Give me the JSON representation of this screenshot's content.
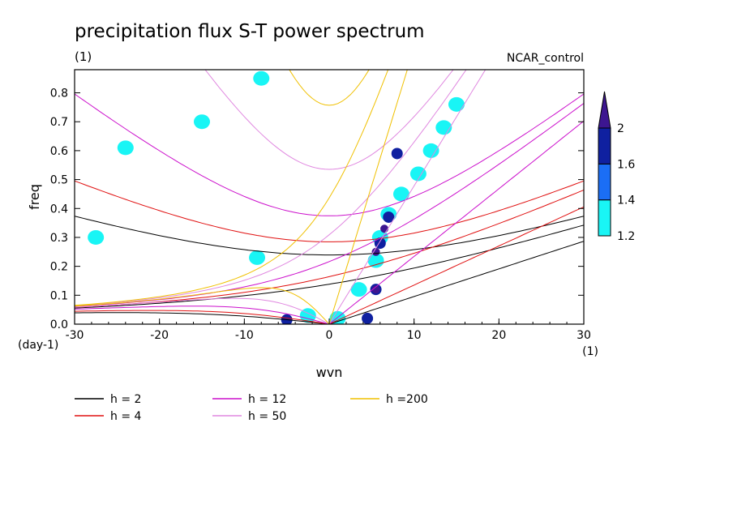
{
  "chart_data": {
    "type": "heatmap",
    "title": "precipitation flux S-T power spectrum",
    "subtitle_left": "(1)",
    "subtitle_right": "NCAR_control",
    "xlabel": "wvn",
    "ylabel": "freq",
    "x_unit": "(1)",
    "y_unit": "(day-1)",
    "xlim": [
      -30,
      30
    ],
    "ylim": [
      0,
      0.88
    ],
    "xticks": [
      -30,
      -20,
      -10,
      0,
      10,
      20,
      30
    ],
    "xtick_labels": [
      "-30",
      "-20",
      "-10",
      "0",
      "10",
      "20",
      "30"
    ],
    "yticks": [
      0,
      0.1,
      0.2,
      0.3,
      0.4,
      0.5,
      0.6,
      0.7,
      0.8
    ],
    "ytick_labels": [
      "0.0",
      "0.1",
      "0.2",
      "0.3",
      "0.4",
      "0.5",
      "0.6",
      "0.7",
      "0.8"
    ],
    "colorbar": {
      "levels": [
        1.2,
        1.4,
        1.6,
        2
      ],
      "labels": [
        "1.2",
        "1.4",
        "1.6",
        "2"
      ],
      "colors": [
        "#19f5f5",
        "#1b6ef5",
        "#0f20a0",
        "#3d1690"
      ]
    },
    "filled_regions": [
      {
        "level": 1.2,
        "wvn": 1.0,
        "freq": 0.02
      },
      {
        "level": 1.2,
        "wvn": 3.5,
        "freq": 0.12
      },
      {
        "level": 1.2,
        "wvn": 5.5,
        "freq": 0.22
      },
      {
        "level": 1.2,
        "wvn": 6.0,
        "freq": 0.3
      },
      {
        "level": 1.2,
        "wvn": 7.0,
        "freq": 0.38
      },
      {
        "level": 1.2,
        "wvn": 8.5,
        "freq": 0.45
      },
      {
        "level": 1.2,
        "wvn": 10.5,
        "freq": 0.52
      },
      {
        "level": 1.2,
        "wvn": 12.0,
        "freq": 0.6
      },
      {
        "level": 1.2,
        "wvn": 13.5,
        "freq": 0.68
      },
      {
        "level": 1.2,
        "wvn": 15.0,
        "freq": 0.76
      },
      {
        "level": 1.2,
        "wvn": -2.5,
        "freq": 0.03
      },
      {
        "level": 1.2,
        "wvn": -8.5,
        "freq": 0.23
      },
      {
        "level": 1.2,
        "wvn": -24.0,
        "freq": 0.61
      },
      {
        "level": 1.2,
        "wvn": -8.0,
        "freq": 0.85
      },
      {
        "level": 1.2,
        "wvn": -15.0,
        "freq": 0.7
      },
      {
        "level": 1.2,
        "wvn": -27.5,
        "freq": 0.3
      },
      {
        "level": 1.6,
        "wvn": 6.0,
        "freq": 0.28
      },
      {
        "level": 1.6,
        "wvn": 7.0,
        "freq": 0.37
      },
      {
        "level": 1.6,
        "wvn": 5.5,
        "freq": 0.12
      },
      {
        "level": 1.6,
        "wvn": 8.0,
        "freq": 0.59
      },
      {
        "level": 1.6,
        "wvn": -5.0,
        "freq": 0.015
      },
      {
        "level": 1.6,
        "wvn": 4.5,
        "freq": 0.02
      },
      {
        "level": 2,
        "wvn": 5.5,
        "freq": 0.25
      },
      {
        "level": 2,
        "wvn": 6.5,
        "freq": 0.33
      },
      {
        "level": 2,
        "wvn": 5.5,
        "freq": 0.12
      }
    ],
    "dispersion_curves": [
      {
        "label": "h =  2",
        "h": 2,
        "color": "#000000"
      },
      {
        "label": "h = 4",
        "h": 4,
        "color": "#e01010"
      },
      {
        "label": "h = 12",
        "h": 12,
        "color": "#cc10cc"
      },
      {
        "label": "h = 50",
        "h": 50,
        "color": "#e088e0"
      },
      {
        "label": "h =200",
        "h": 200,
        "color": "#f0c000"
      }
    ]
  }
}
